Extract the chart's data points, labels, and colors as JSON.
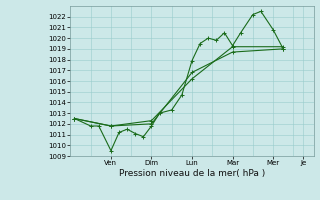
{
  "bg_color": "#cce8e8",
  "grid_color": "#99cccc",
  "line_color": "#1a6b1a",
  "ylabel": "Pression niveau de la mer( hPa )",
  "ylim": [
    1009,
    1023
  ],
  "yticks": [
    1009,
    1010,
    1011,
    1012,
    1013,
    1014,
    1015,
    1016,
    1017,
    1018,
    1019,
    1020,
    1021,
    1022
  ],
  "xlim": [
    0,
    12
  ],
  "day_positions": [
    2.0,
    4.0,
    6.0,
    8.0,
    10.0,
    11.5
  ],
  "day_labels": [
    "Ven",
    "Dim",
    "Lun",
    "Mar",
    "Mer",
    "Je"
  ],
  "series1_x": [
    0.2,
    1.0,
    1.4,
    2.0,
    2.4,
    2.8,
    3.2,
    3.6,
    4.0,
    4.4,
    5.0,
    5.5,
    6.0,
    6.4,
    6.8,
    7.2,
    7.6,
    8.0,
    8.4,
    9.0,
    9.4,
    10.0,
    10.5
  ],
  "series1_y": [
    1012.5,
    1011.8,
    1011.8,
    1009.5,
    1011.2,
    1011.5,
    1011.1,
    1010.8,
    1011.8,
    1013.0,
    1013.3,
    1014.7,
    1017.9,
    1019.5,
    1020.0,
    1019.8,
    1020.5,
    1019.3,
    1020.5,
    1022.2,
    1022.5,
    1020.8,
    1019.0
  ],
  "series2_x": [
    0.2,
    2.0,
    4.0,
    6.0,
    8.0,
    10.5
  ],
  "series2_y": [
    1012.5,
    1011.8,
    1012.0,
    1016.8,
    1018.7,
    1019.0
  ],
  "series3_x": [
    0.2,
    2.0,
    4.0,
    6.0,
    8.0,
    10.5
  ],
  "series3_y": [
    1012.5,
    1011.8,
    1012.3,
    1016.2,
    1019.2,
    1019.2
  ],
  "tick_fontsize": 5.0,
  "xlabel_fontsize": 6.5
}
